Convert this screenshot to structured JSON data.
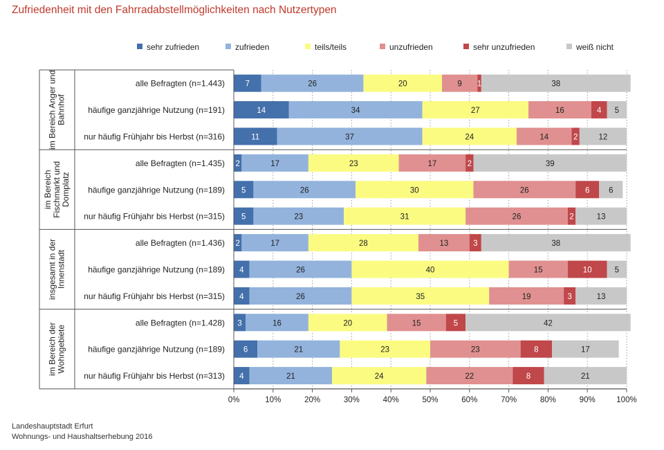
{
  "title": "Zufriedenheit mit den Fahrradabstellmöglichkeiten nach Nutzertypen",
  "source": {
    "line1": "Landeshauptstadt Erfurt",
    "line2": "Wohnungs- und Haushaltserhebung 2016"
  },
  "chart_data": {
    "type": "bar",
    "orientation": "horizontal",
    "stacked": true,
    "percent_scale": true,
    "xlim": [
      0,
      100
    ],
    "x_ticks": [
      "0%",
      "10%",
      "20%",
      "30%",
      "40%",
      "50%",
      "60%",
      "70%",
      "80%",
      "90%",
      "100%"
    ],
    "grid": "vertical dotted",
    "legend_position": "top",
    "series": [
      {
        "name": "sehr zufrieden",
        "color": "#4470ab"
      },
      {
        "name": "zufrieden",
        "color": "#93b3dc"
      },
      {
        "name": "teils/teils",
        "color": "#fbfb82"
      },
      {
        "name": "unzufrieden",
        "color": "#e09090"
      },
      {
        "name": "sehr unzufrieden",
        "color": "#c0474a"
      },
      {
        "name": "weiß nicht",
        "color": "#c8c8c8"
      }
    ],
    "groups": [
      {
        "label": "im Bereich Anger und Bahnhof",
        "label_lines": [
          "im Bereich Anger und",
          "Bahnhof"
        ],
        "rows": [
          {
            "label": "alle Befragten (n=1.443)",
            "values": [
              7,
              26,
              20,
              9,
              1,
              38
            ]
          },
          {
            "label": "häufige ganzjährige Nutzung (n=191)",
            "values": [
              14,
              34,
              27,
              16,
              4,
              5
            ]
          },
          {
            "label": "nur häufig Frühjahr bis Herbst (n=316)",
            "values": [
              11,
              37,
              24,
              14,
              2,
              12
            ]
          }
        ]
      },
      {
        "label": "im Bereich Fischmarkt und Domplatz",
        "label_lines": [
          "im Bereich",
          "Fischmarkt und",
          "Domplatz"
        ],
        "rows": [
          {
            "label": "alle Befragten (n=1.435)",
            "values": [
              2,
              17,
              23,
              17,
              2,
              39
            ]
          },
          {
            "label": "häufige ganzjährige Nutzung (n=189)",
            "values": [
              5,
              26,
              30,
              26,
              6,
              6
            ]
          },
          {
            "label": "nur häufig Frühjahr bis Herbst (n=315)",
            "values": [
              5,
              23,
              31,
              26,
              2,
              13
            ]
          }
        ]
      },
      {
        "label": "insgesamt in der Innenstadt",
        "label_lines": [
          "insgesamt in der",
          "Innenstadt"
        ],
        "rows": [
          {
            "label": "alle Befragten (n=1.436)",
            "values": [
              2,
              17,
              28,
              13,
              3,
              38
            ]
          },
          {
            "label": "häufige ganzjährige Nutzung (n=189)",
            "values": [
              4,
              26,
              40,
              15,
              10,
              5
            ]
          },
          {
            "label": "nur häufig Frühjahr bis Herbst (n=315)",
            "values": [
              4,
              26,
              35,
              19,
              3,
              13
            ]
          }
        ]
      },
      {
        "label": "im Bereich der Wohngebiete",
        "label_lines": [
          "im Bereich der",
          "Wohngebiete"
        ],
        "rows": [
          {
            "label": "alle Befragten (n=1.428)",
            "values": [
              3,
              16,
              20,
              15,
              5,
              42
            ]
          },
          {
            "label": "häufige ganzjährige Nutzung (n=189)",
            "values": [
              6,
              21,
              23,
              23,
              8,
              17
            ]
          },
          {
            "label": "nur häufig Frühjahr bis Herbst (n=313)",
            "values": [
              4,
              21,
              24,
              22,
              8,
              21
            ]
          }
        ]
      }
    ]
  }
}
